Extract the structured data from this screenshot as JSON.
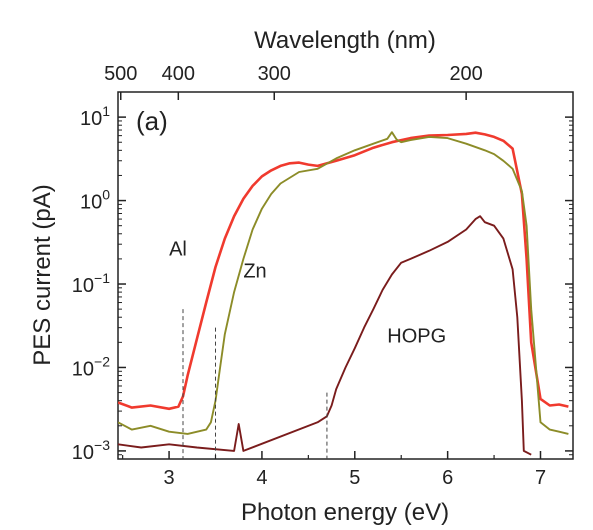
{
  "chart_data": {
    "type": "line",
    "panel_label": "(a)",
    "xlabel": "Photon energy (eV)",
    "ylabel": "PES current (pA)",
    "top_xlabel": "Wavelength (nm)",
    "xlim": [
      2.45,
      7.35
    ],
    "ylim": [
      0.0008,
      20
    ],
    "yscale": "log",
    "x_ticks": [
      {
        "value": 3,
        "label": "3"
      },
      {
        "value": 4,
        "label": "4"
      },
      {
        "value": 5,
        "label": "5"
      },
      {
        "value": 6,
        "label": "6"
      },
      {
        "value": 7,
        "label": "7"
      }
    ],
    "y_ticks": [
      {
        "value": 0.001,
        "base": "10",
        "exp": "−3"
      },
      {
        "value": 0.01,
        "base": "10",
        "exp": "−2"
      },
      {
        "value": 0.1,
        "base": "10",
        "exp": "−1"
      },
      {
        "value": 1,
        "base": "10",
        "exp": "0"
      },
      {
        "value": 10,
        "base": "10",
        "exp": "1"
      }
    ],
    "top_ticks": [
      {
        "wavelength": 500,
        "label": "500"
      },
      {
        "wavelength": 400,
        "label": "400"
      },
      {
        "wavelength": 300,
        "label": "300"
      },
      {
        "wavelength": 200,
        "label": "200"
      }
    ],
    "series": [
      {
        "name": "Al",
        "color": "#f03a2e",
        "label_pos": {
          "x": 3.0,
          "y": 0.22
        },
        "x": [
          2.45,
          2.6,
          2.8,
          3.0,
          3.1,
          3.15,
          3.2,
          3.3,
          3.4,
          3.5,
          3.6,
          3.7,
          3.8,
          3.9,
          4.0,
          4.1,
          4.2,
          4.3,
          4.4,
          4.5,
          4.6,
          4.8,
          5.0,
          5.2,
          5.4,
          5.5,
          5.6,
          5.8,
          6.0,
          6.2,
          6.3,
          6.4,
          6.5,
          6.6,
          6.7,
          6.8,
          6.85,
          6.9,
          7.0,
          7.1,
          7.2,
          7.3
        ],
        "y": [
          0.0038,
          0.0033,
          0.0035,
          0.0032,
          0.0034,
          0.0045,
          0.008,
          0.022,
          0.06,
          0.16,
          0.35,
          0.65,
          1.05,
          1.5,
          1.95,
          2.3,
          2.6,
          2.8,
          2.85,
          2.7,
          2.6,
          3.0,
          3.5,
          4.3,
          5.0,
          5.3,
          5.6,
          6.0,
          6.1,
          6.3,
          6.5,
          6.2,
          5.8,
          5.2,
          4.2,
          1.2,
          0.2,
          0.02,
          0.0042,
          0.0035,
          0.0036,
          0.0034
        ]
      },
      {
        "name": "Zn",
        "color": "#8c8c28",
        "label_pos": {
          "x": 3.8,
          "y": 0.12
        },
        "x": [
          2.45,
          2.6,
          2.8,
          3.0,
          3.2,
          3.4,
          3.45,
          3.5,
          3.55,
          3.6,
          3.7,
          3.8,
          3.9,
          4.0,
          4.1,
          4.2,
          4.4,
          4.6,
          4.8,
          5.0,
          5.2,
          5.35,
          5.4,
          5.45,
          5.5,
          5.6,
          5.8,
          6.0,
          6.2,
          6.4,
          6.5,
          6.6,
          6.7,
          6.8,
          6.85,
          6.9,
          7.0,
          7.1,
          7.2,
          7.3
        ],
        "y": [
          0.0022,
          0.0018,
          0.002,
          0.0017,
          0.0016,
          0.0018,
          0.0022,
          0.004,
          0.01,
          0.025,
          0.08,
          0.2,
          0.45,
          0.8,
          1.2,
          1.6,
          2.2,
          2.4,
          3.2,
          4.0,
          4.8,
          5.5,
          6.6,
          5.4,
          5.0,
          5.3,
          5.8,
          5.6,
          4.8,
          4.0,
          3.6,
          3.0,
          2.4,
          1.3,
          0.5,
          0.05,
          0.0022,
          0.0018,
          0.0017,
          0.0016
        ]
      },
      {
        "name": "HOPG",
        "color": "#7a1c1c",
        "label_pos": {
          "x": 5.35,
          "y": 0.02
        },
        "x": [
          2.45,
          2.7,
          3.0,
          3.3,
          3.7,
          3.75,
          3.8,
          4.6,
          4.7,
          4.75,
          4.8,
          4.9,
          5.0,
          5.1,
          5.2,
          5.3,
          5.4,
          5.5,
          5.6,
          5.8,
          6.0,
          6.2,
          6.3,
          6.35,
          6.4,
          6.5,
          6.6,
          6.7,
          6.75,
          6.8,
          6.82,
          6.9
        ],
        "y": [
          0.0012,
          0.0011,
          0.0012,
          0.0011,
          0.001,
          0.0021,
          0.001,
          0.0022,
          0.0026,
          0.0035,
          0.0055,
          0.01,
          0.017,
          0.03,
          0.05,
          0.085,
          0.13,
          0.18,
          0.2,
          0.25,
          0.32,
          0.45,
          0.6,
          0.65,
          0.55,
          0.5,
          0.35,
          0.15,
          0.04,
          0.004,
          0.001,
          0.0009
        ]
      }
    ],
    "markers": [
      {
        "series": "Al",
        "x": 3.15,
        "y_top": 0.05
      },
      {
        "series": "Zn",
        "x": 3.5,
        "y_top": 0.03
      },
      {
        "series": "HOPG",
        "x": 4.7,
        "y_top": 0.005
      }
    ]
  }
}
